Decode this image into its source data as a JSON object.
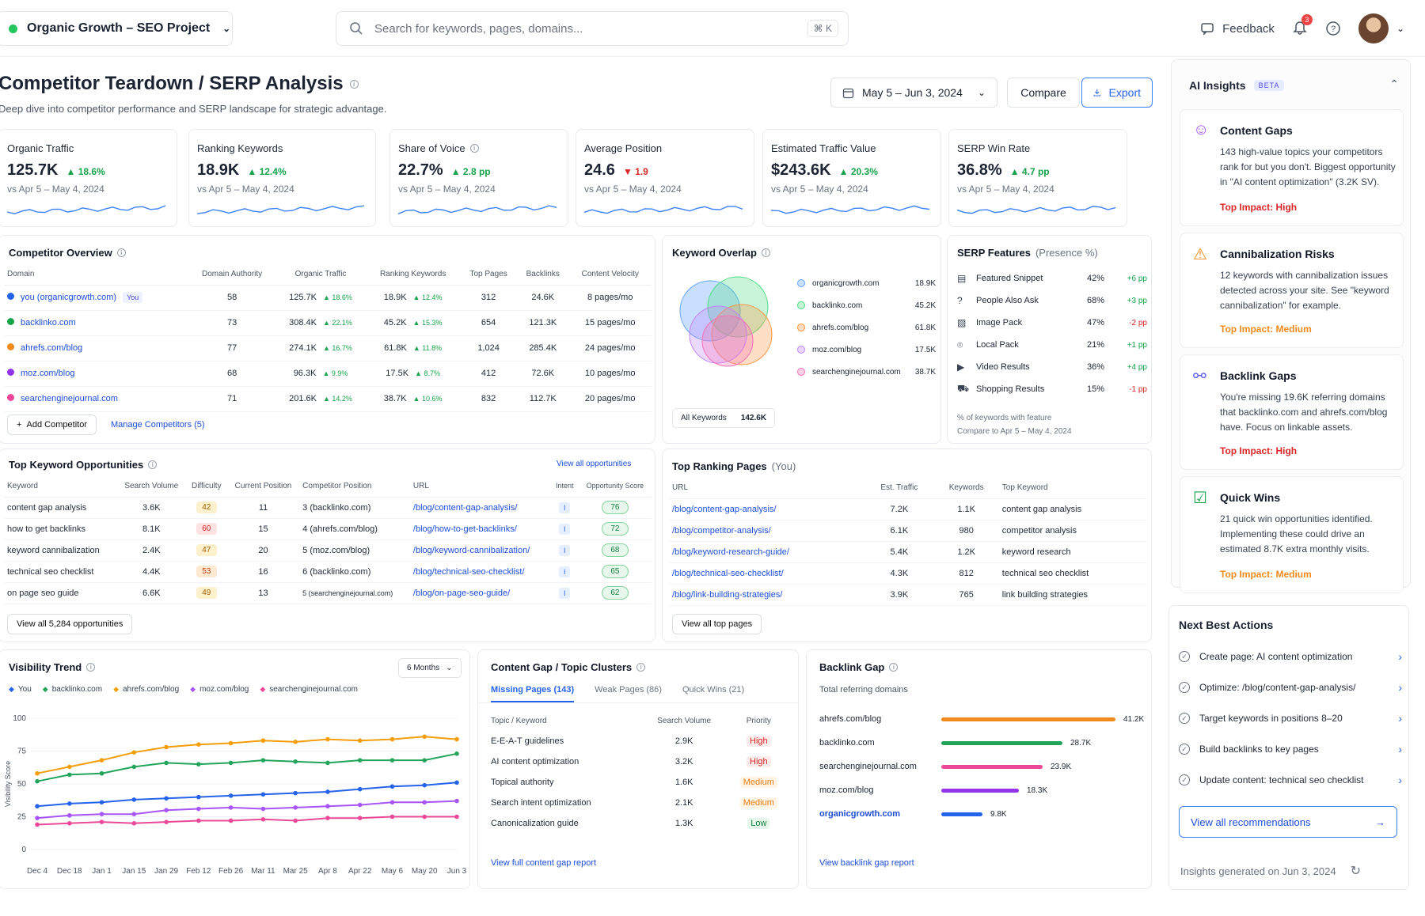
{
  "topbar": {
    "project": "Organic Growth – SEO Project",
    "search_placeholder": "Search for keywords, pages, domains...",
    "shortcut": "⌘ K",
    "feedback": "Feedback",
    "notif_count": "3"
  },
  "header": {
    "title": "Competitor Teardown / SERP Analysis",
    "subtitle": "Deep dive into competitor performance and SERP landscape for strategic advantage.",
    "date_range": "May 5 – Jun 3, 2024",
    "compare": "Compare",
    "export": "Export"
  },
  "kpis": [
    {
      "title": "Organic Traffic",
      "value": "125.7K",
      "delta": "▲ 18.6%",
      "dir": "up",
      "compare": "vs Apr 5 – May 4, 2024"
    },
    {
      "title": "Ranking Keywords",
      "value": "18.9K",
      "delta": "▲ 12.4%",
      "dir": "up",
      "compare": "vs Apr 5 – May 4, 2024"
    },
    {
      "title": "Share of Voice",
      "value": "22.7%",
      "delta": "▲ 2.8 pp",
      "dir": "up",
      "compare": "vs Apr 5 – May 4, 2024"
    },
    {
      "title": "Average Position",
      "value": "24.6",
      "delta": "▼ 1.9",
      "dir": "down",
      "compare": "vs Apr 5 – May 4, 2024"
    },
    {
      "title": "Estimated Traffic Value",
      "value": "$243.6K",
      "delta": "▲ 20.3%",
      "dir": "up",
      "compare": "vs Apr 5 – May 4, 2024"
    },
    {
      "title": "SERP Win Rate",
      "value": "36.8%",
      "delta": "▲ 4.7 pp",
      "dir": "up",
      "compare": "vs Apr 5 – May 4, 2024"
    }
  ],
  "competitor_overview": {
    "title": "Competitor Overview",
    "headers": [
      "Domain",
      "Domain Authority",
      "Organic Traffic",
      "Ranking Keywords",
      "Top Pages",
      "Backlinks",
      "Content Velocity"
    ],
    "rows": [
      {
        "domain": "you (organicgrowth.com)",
        "you_tag": "You",
        "color": "#2563eb",
        "da": "58",
        "traffic": "125.7K",
        "traffic_d": "▲ 18.6%",
        "kw": "18.9K",
        "kw_d": "▲ 12.4%",
        "pages": "312",
        "backlinks": "24.6K",
        "velocity": "8 pages/mo"
      },
      {
        "domain": "backlinko.com",
        "you_tag": "",
        "color": "#16a34a",
        "da": "73",
        "traffic": "308.4K",
        "traffic_d": "▲ 22.1%",
        "kw": "45.2K",
        "kw_d": "▲ 15.3%",
        "pages": "654",
        "backlinks": "121.3K",
        "velocity": "15 pages/mo"
      },
      {
        "domain": "ahrefs.com/blog",
        "you_tag": "",
        "color": "#f08a1c",
        "da": "77",
        "traffic": "274.1K",
        "traffic_d": "▲ 16.7%",
        "kw": "61.8K",
        "kw_d": "▲ 11.8%",
        "pages": "1,024",
        "backlinks": "285.4K",
        "velocity": "24 pages/mo"
      },
      {
        "domain": "moz.com/blog",
        "you_tag": "",
        "color": "#9333ea",
        "da": "68",
        "traffic": "96.3K",
        "traffic_d": "▲ 9.9%",
        "kw": "17.5K",
        "kw_d": "▲ 8.7%",
        "pages": "412",
        "backlinks": "72.6K",
        "velocity": "10 pages/mo"
      },
      {
        "domain": "searchenginejournal.com",
        "you_tag": "",
        "color": "#ec4899",
        "da": "71",
        "traffic": "201.6K",
        "traffic_d": "▲ 14.2%",
        "kw": "38.7K",
        "kw_d": "▲ 10.6%",
        "pages": "832",
        "backlinks": "112.7K",
        "velocity": "20 pages/mo"
      }
    ],
    "add_button": "Add Competitor",
    "manage_link": "Manage Competitors (5)"
  },
  "keyword_overlap": {
    "title": "Keyword Overlap",
    "items": [
      {
        "label": "organicgrowth.com",
        "value": "18.9K",
        "color": "#60a5fa"
      },
      {
        "label": "backlinko.com",
        "value": "45.2K",
        "color": "#4ade80"
      },
      {
        "label": "ahrefs.com/blog",
        "value": "61.8K",
        "color": "#fb923c"
      },
      {
        "label": "moz.com/blog",
        "value": "17.5K",
        "color": "#c084fc"
      },
      {
        "label": "searchenginejournal.com",
        "value": "38.7K",
        "color": "#f472b6"
      }
    ],
    "all_label": "All Keywords",
    "all_value": "142.6K"
  },
  "serp_features": {
    "title": "SERP Features",
    "title_suffix": "(Presence %)",
    "rows": [
      {
        "label": "Featured Snippet",
        "pct": "42%",
        "delta": "+6 pp",
        "dir": "up",
        "icon": "snippet-icon",
        "glyph": "▤"
      },
      {
        "label": "People Also Ask",
        "pct": "68%",
        "delta": "+3 pp",
        "dir": "up",
        "icon": "question-icon",
        "glyph": "?"
      },
      {
        "label": "Image Pack",
        "pct": "47%",
        "delta": "-2 pp",
        "dir": "down",
        "icon": "image-icon",
        "glyph": "▨"
      },
      {
        "label": "Local Pack",
        "pct": "21%",
        "delta": "+1 pp",
        "dir": "up",
        "icon": "pin-icon",
        "glyph": "⌾"
      },
      {
        "label": "Video Results",
        "pct": "36%",
        "delta": "+4 pp",
        "dir": "up",
        "icon": "video-icon",
        "glyph": "▶"
      },
      {
        "label": "Shopping Results",
        "pct": "15%",
        "delta": "-1 pp",
        "dir": "down",
        "icon": "cart-icon",
        "glyph": "⛟"
      }
    ],
    "footnote": "% of keywords with feature",
    "compare": "Compare to Apr 5 – May 4, 2024"
  },
  "opportunities": {
    "title": "Top Keyword Opportunities",
    "view_all_link": "View all opportunities",
    "headers": [
      "Keyword",
      "Search Volume",
      "Difficulty",
      "Current Position",
      "Competitor Position",
      "URL",
      "Intent",
      "Opportunity Score"
    ],
    "rows": [
      {
        "kw": "content gap analysis",
        "vol": "3.6K",
        "diff": "42",
        "cur": "11",
        "comp": "3 (backlinko.com)",
        "url": "/blog/content-gap-analysis/",
        "intent": "I",
        "score": "76"
      },
      {
        "kw": "how to get backlinks",
        "vol": "8.1K",
        "diff": "60",
        "cur": "15",
        "comp": "4 (ahrefs.com/blog)",
        "url": "/blog/how-to-get-backlinks/",
        "intent": "I",
        "score": "72"
      },
      {
        "kw": "keyword cannibalization",
        "vol": "2.4K",
        "diff": "47",
        "cur": "20",
        "comp": "5 (moz.com/blog)",
        "url": "/blog/keyword-cannibalization/",
        "intent": "I",
        "score": "68"
      },
      {
        "kw": "technical seo checklist",
        "vol": "4.4K",
        "diff": "53",
        "cur": "16",
        "comp": "6 (backlinko.com)",
        "url": "/blog/technical-seo-checklist/",
        "intent": "I",
        "score": "65"
      },
      {
        "kw": "on page seo guide",
        "vol": "6.6K",
        "diff": "49",
        "cur": "13",
        "comp": "5 (searchenginejournal.com)",
        "url": "/blog/on-page-seo-guide/",
        "intent": "I",
        "score": "62"
      }
    ],
    "view_all_button": "View all 5,284 opportunities"
  },
  "top_pages": {
    "title": "Top Ranking Pages",
    "title_suffix": "(You)",
    "headers": [
      "URL",
      "Est. Traffic",
      "Keywords",
      "Top Keyword"
    ],
    "rows": [
      {
        "url": "/blog/content-gap-analysis/",
        "traffic": "7.2K",
        "kw": "1.1K",
        "top": "content gap analysis"
      },
      {
        "url": "/blog/competitor-analysis/",
        "traffic": "6.1K",
        "kw": "980",
        "top": "competitor analysis"
      },
      {
        "url": "/blog/keyword-research-guide/",
        "traffic": "5.4K",
        "kw": "1.2K",
        "top": "keyword research"
      },
      {
        "url": "/blog/technical-seo-checklist/",
        "traffic": "4.3K",
        "kw": "812",
        "top": "technical seo checklist"
      },
      {
        "url": "/blog/link-building-strategies/",
        "traffic": "3.9K",
        "kw": "765",
        "top": "link building strategies"
      }
    ],
    "view_all_button": "View all top pages"
  },
  "visibility": {
    "title": "Visibility Trend",
    "range": "6 Months",
    "ylabel": "Visibility Score"
  },
  "chart_data": {
    "type": "line",
    "title": "Visibility Trend",
    "xlabel": "",
    "ylabel": "Visibility Score",
    "ylim": [
      0,
      100
    ],
    "yticks": [
      "0",
      "25",
      "50",
      "75",
      "100"
    ],
    "x": [
      "Dec 4",
      "Dec 18",
      "Jan 1",
      "Jan 15",
      "Jan 29",
      "Feb 12",
      "Feb 26",
      "Mar 11",
      "Mar 25",
      "Apr 8",
      "Apr 22",
      "May 6",
      "May 20",
      "Jun 3"
    ],
    "legend": "top",
    "grid": true,
    "series": [
      {
        "name": "You",
        "color": "#2563eb",
        "values": [
          33,
          35,
          36,
          38,
          39,
          40,
          41,
          42,
          43,
          44,
          46,
          48,
          49,
          51
        ]
      },
      {
        "name": "backlinko.com",
        "color": "#22a55a",
        "values": [
          52,
          57,
          58,
          63,
          66,
          65,
          66,
          68,
          67,
          66,
          68,
          68,
          68,
          73
        ]
      },
      {
        "name": "ahrefs.com/blog",
        "color": "#f59e0b",
        "values": [
          58,
          63,
          68,
          74,
          78,
          80,
          81,
          83,
          82,
          84,
          83,
          84,
          86,
          84
        ]
      },
      {
        "name": "moz.com/blog",
        "color": "#a855f7",
        "values": [
          24,
          26,
          27,
          27,
          30,
          31,
          32,
          31,
          32,
          33,
          34,
          36,
          36,
          37
        ]
      },
      {
        "name": "searchenginejournal.com",
        "color": "#ec4899",
        "values": [
          19,
          20,
          21,
          20,
          21,
          22,
          22,
          23,
          22,
          24,
          24,
          25,
          25,
          25
        ]
      }
    ]
  },
  "content_gap": {
    "title": "Content Gap / Topic Clusters",
    "tabs": [
      "Missing Pages (143)",
      "Weak Pages (86)",
      "Quick Wins (21)"
    ],
    "headers": [
      "Topic / Keyword",
      "Search Volume",
      "Priority"
    ],
    "rows": [
      {
        "topic": "E-E-A-T guidelines",
        "vol": "2.9K",
        "prio": "High",
        "level": "high"
      },
      {
        "topic": "AI content optimization",
        "vol": "3.2K",
        "prio": "High",
        "level": "high"
      },
      {
        "topic": "Topical authority",
        "vol": "1.6K",
        "prio": "Medium",
        "level": "medium"
      },
      {
        "topic": "Search intent optimization",
        "vol": "2.1K",
        "prio": "Medium",
        "level": "medium"
      },
      {
        "topic": "Canonicalization guide",
        "vol": "1.3K",
        "prio": "Low",
        "level": "low"
      }
    ],
    "link": "View full content gap report"
  },
  "backlink_gap": {
    "title": "Backlink Gap",
    "subtitle": "Total referring domains",
    "max": 41.2,
    "rows": [
      {
        "domain": "ahrefs.com/blog",
        "value": 41.2,
        "label": "41.2K",
        "color": "#f08a1c"
      },
      {
        "domain": "backlinko.com",
        "value": 28.7,
        "label": "28.7K",
        "color": "#22a55a"
      },
      {
        "domain": "searchenginejournal.com",
        "value": 23.9,
        "label": "23.9K",
        "color": "#ec4899"
      },
      {
        "domain": "moz.com/blog",
        "value": 18.3,
        "label": "18.3K",
        "color": "#9333ea"
      },
      {
        "domain": "organicgrowth.com",
        "value": 9.8,
        "label": "9.8K",
        "color": "#2563eb"
      }
    ],
    "link": "View backlink gap report"
  },
  "ai_insights": {
    "title": "AI Insights",
    "beta": "BETA",
    "items": [
      {
        "title": "Content Gaps",
        "body": "143 high-value topics your competitors rank for but you don't. Biggest opportunity in \"AI content optimization\" (3.2K SV).",
        "impact": "Top Impact: High",
        "impact_color": "#dc2626",
        "icon": "content-gaps-icon",
        "glyph": "☺",
        "color": "#a855f7"
      },
      {
        "title": "Cannibalization Risks",
        "body": "12 keywords with cannibalization issues detected across your site. See \"keyword cannibalization\" for example.",
        "impact": "Top Impact: Medium",
        "impact_color": "#f08a1c",
        "icon": "warning-icon",
        "glyph": "⚠",
        "color": "#f08a1c"
      },
      {
        "title": "Backlink Gaps",
        "body": "You're missing 19.6K referring domains that backlinko.com and ahrefs.com/blog have. Focus on linkable assets.",
        "impact": "Top Impact: High",
        "impact_color": "#dc2626",
        "icon": "link-icon",
        "glyph": "⚯",
        "color": "#6366f1"
      },
      {
        "title": "Quick Wins",
        "body": "21 quick win opportunities identified. Implementing these could drive an estimated 8.7K extra monthly visits.",
        "impact": "Top Impact: Medium",
        "impact_color": "#f08a1c",
        "icon": "checklist-icon",
        "glyph": "☑",
        "color": "#16a34a"
      }
    ]
  },
  "next_actions": {
    "title": "Next Best Actions",
    "items": [
      "Create page: AI content optimization",
      "Optimize: /blog/content-gap-analysis/",
      "Target keywords in positions 8–20",
      "Build backlinks to key pages",
      "Update content: technical seo checklist"
    ],
    "view_all": "View all recommendations",
    "generated": "Insights generated on Jun 3, 2024"
  }
}
